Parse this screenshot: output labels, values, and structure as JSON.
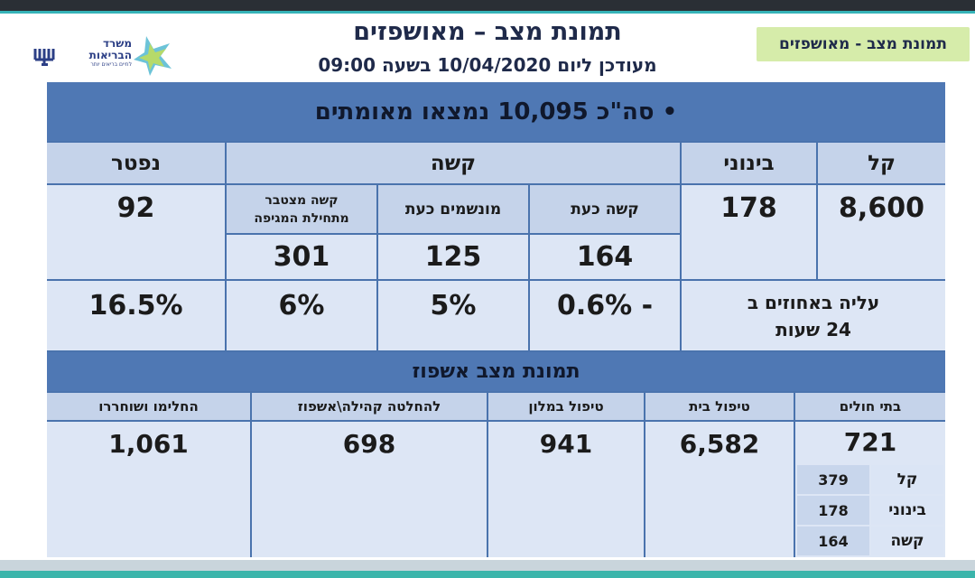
{
  "header": {
    "title": "תמונת מצב – מאושפזים",
    "updated": "מעודכן ליום 10/04/2020 בשעה 09:00",
    "tag": "תמונת מצב - מאושפזים",
    "logo_text": "משרד הבריאות",
    "logo_tagline": "לחיים בריאים יותר"
  },
  "summary": {
    "total": "• סה\"כ 10,095 נמצאו מאומתים"
  },
  "severity": {
    "headers": {
      "light": "קל",
      "moderate": "בינוני",
      "severe": "קשה",
      "deceased": "נפטר"
    },
    "light_value": "8,600",
    "moderate_value": "178",
    "deceased_value": "92",
    "severe_sub": [
      {
        "label": "קשה כעת",
        "value": "164",
        "pct": "- 0.6%"
      },
      {
        "label": "מונשמים כעת",
        "value": "125",
        "pct": "5%"
      },
      {
        "label": "קשה מצטבר מתחילת המגיפה",
        "value": "301",
        "pct": "6%"
      }
    ],
    "increase_label": "עליה באחוזים ב 24 שעות",
    "deceased_pct": "16.5%"
  },
  "hospitalization": {
    "band": "תמונת מצב אשפוז",
    "columns": [
      {
        "label": "בתי חולים",
        "value": "721"
      },
      {
        "label": "טיפול בית",
        "value": "6,582"
      },
      {
        "label": "טיפול במלון",
        "value": "941"
      },
      {
        "label": "להחלטה קהילה\\אשפוז",
        "value": "698"
      },
      {
        "label": "החלימו ושוחררו",
        "value": "1,061"
      }
    ],
    "hospital_breakdown": [
      {
        "label": "קל",
        "value": "379"
      },
      {
        "label": "בינוני",
        "value": "178"
      },
      {
        "label": "קשה",
        "value": "164"
      }
    ]
  },
  "colors": {
    "panel": "#4a73ad",
    "header_cell": "#c5d3ea",
    "value_cell": "#dde6f5",
    "tag": "#d6ecaa",
    "title": "#1f2a4a"
  }
}
